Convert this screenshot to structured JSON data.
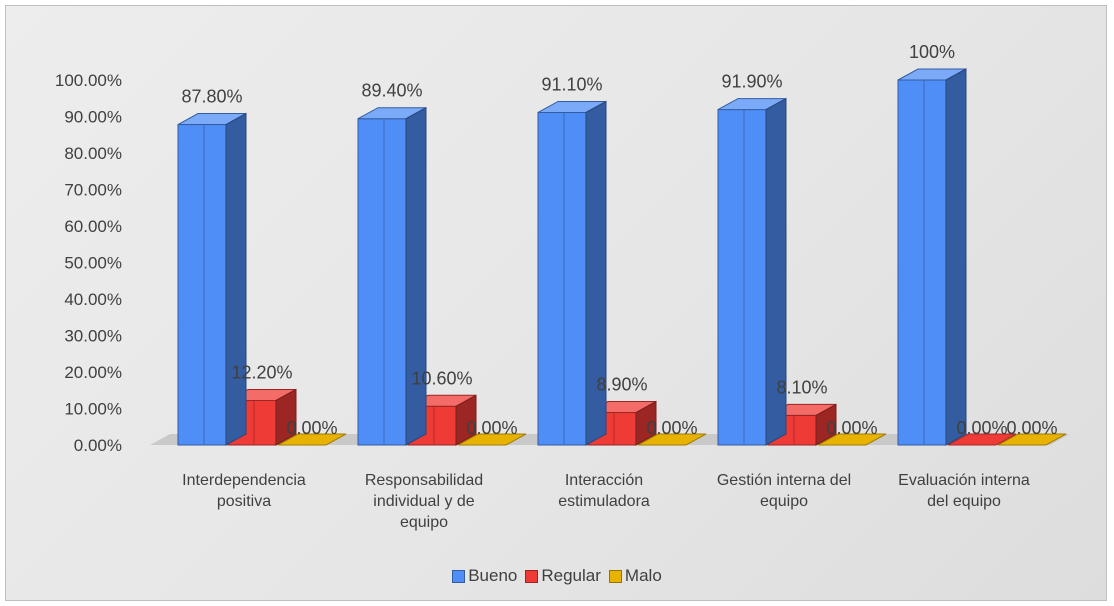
{
  "chart_data": {
    "type": "bar",
    "title": "",
    "xlabel": "",
    "ylabel": "",
    "ylim": [
      0,
      100
    ],
    "y_ticks": [
      "0.00%",
      "10.00%",
      "20.00%",
      "30.00%",
      "40.00%",
      "50.00%",
      "60.00%",
      "70.00%",
      "80.00%",
      "90.00%",
      "100.00%"
    ],
    "categories": [
      "Interdependencia positiva",
      "Responsabilidad individual y de equipo",
      "Interacción estimuladora",
      "Gestión interna del equipo",
      "Evaluación interna del equipo"
    ],
    "category_lines": [
      [
        "Interdependencia",
        "positiva"
      ],
      [
        "Responsabilidad",
        "individual y de",
        "equipo"
      ],
      [
        "Interacción",
        "estimuladora"
      ],
      [
        "Gestión interna del",
        "equipo"
      ],
      [
        "Evaluación interna",
        "del equipo"
      ]
    ],
    "series": [
      {
        "name": "Bueno",
        "color": "#4f8ef7",
        "values": [
          87.8,
          89.4,
          91.1,
          91.9,
          100
        ],
        "labels": [
          "87.80%",
          "89.40%",
          "91.10%",
          "91.90%",
          "100%"
        ]
      },
      {
        "name": "Regular",
        "color": "#ef3b36",
        "values": [
          12.2,
          10.6,
          8.9,
          8.1,
          0
        ],
        "labels": [
          "12.20%",
          "10.60%",
          "8.90%",
          "8.10%",
          "0.00%"
        ]
      },
      {
        "name": "Malo",
        "color": "#e8b300",
        "values": [
          0,
          0,
          0,
          0,
          0
        ],
        "labels": [
          "0.00%",
          "0.00%",
          "0.00%",
          "0.00%",
          "0.00%"
        ]
      }
    ],
    "grid": false,
    "legend_position": "bottom"
  }
}
